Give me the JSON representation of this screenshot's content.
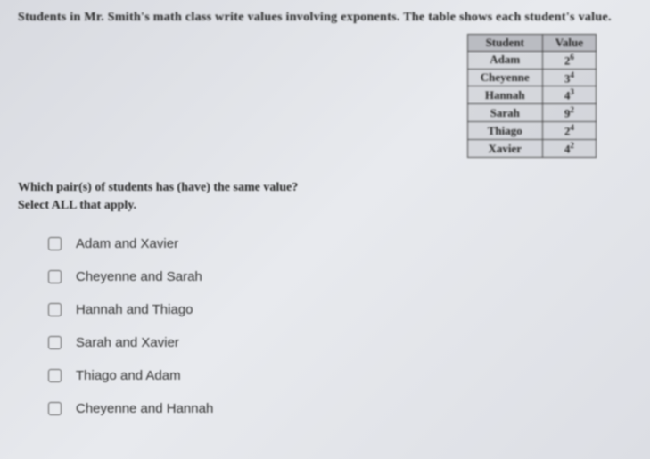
{
  "prompt": "Students in Mr. Smith's math class write values involving exponents. The table shows each student's value.",
  "table": {
    "headers": {
      "col1": "Student",
      "col2": "Value"
    },
    "rows": [
      {
        "name": "Adam",
        "base": "2",
        "exp": "6"
      },
      {
        "name": "Cheyenne",
        "base": "3",
        "exp": "4"
      },
      {
        "name": "Hannah",
        "base": "4",
        "exp": "3"
      },
      {
        "name": "Sarah",
        "base": "9",
        "exp": "2"
      },
      {
        "name": "Thiago",
        "base": "2",
        "exp": "4"
      },
      {
        "name": "Xavier",
        "base": "4",
        "exp": "2"
      }
    ]
  },
  "question": "Which pair(s) of students has (have) the same value?",
  "instruction": "Select ALL that apply.",
  "options": [
    "Adam and Xavier",
    "Cheyenne and Sarah",
    "Hannah and Thiago",
    "Sarah and Xavier",
    "Thiago and Adam",
    "Cheyenne and Hannah"
  ],
  "colors": {
    "text": "#222222",
    "border": "#444444",
    "bg_light": "#e8eaee"
  }
}
